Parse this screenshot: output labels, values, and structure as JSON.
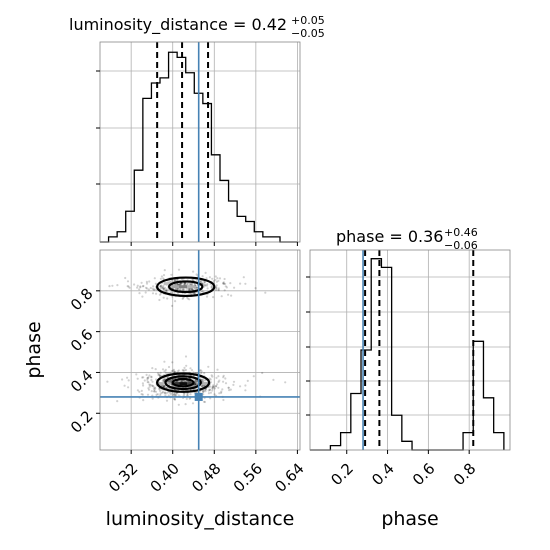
{
  "chart_data": {
    "type": "corner",
    "parameters": [
      "luminosity_distance",
      "phase"
    ],
    "truth": {
      "luminosity_distance": 0.45,
      "phase": 0.28
    },
    "colors": {
      "truth": "#4682b4",
      "hist": "#000000",
      "grid": "#b0b0b0",
      "frame": "#888888"
    },
    "grid": true,
    "luminosity_distance": {
      "title_prefix": "luminosity_distance = ",
      "median_text": "0.42",
      "err_plus_text": "+0.05",
      "err_minus_text": "−0.05",
      "xlabel": "luminosity_distance",
      "range": [
        0.26,
        0.645
      ],
      "ticks": [
        0.32,
        0.4,
        0.48,
        0.56,
        0.64
      ],
      "tick_labels": [
        "0.32",
        "0.40",
        "0.48",
        "0.56",
        "0.64"
      ],
      "quantiles": [
        0.37,
        0.418,
        0.468
      ],
      "hist_edges": [
        0.26,
        0.2765,
        0.293,
        0.3095,
        0.326,
        0.3425,
        0.359,
        0.3755,
        0.392,
        0.4085,
        0.425,
        0.4415,
        0.458,
        0.4745,
        0.491,
        0.5075,
        0.524,
        0.5405,
        0.557,
        0.5735,
        0.59,
        0.6065,
        0.623,
        0.6395
      ],
      "hist_counts": [
        0,
        1,
        2,
        6,
        14,
        28,
        31,
        32,
        37,
        36,
        33,
        29,
        27,
        17,
        12,
        8,
        5,
        4,
        2,
        1,
        1,
        0,
        0
      ],
      "hist_ymax": 39
    },
    "phase": {
      "title_prefix": "phase = ",
      "median_text": "0.36",
      "err_plus_text": "+0.46",
      "err_minus_text": "−0.06",
      "xlabel": "phase",
      "ylabel": "phase",
      "range": [
        0.02,
        1.0
      ],
      "ticks": [
        0.2,
        0.4,
        0.6,
        0.8
      ],
      "tick_labels": [
        "0.2",
        "0.4",
        "0.6",
        "0.8"
      ],
      "quantiles": [
        0.29,
        0.36,
        0.82
      ],
      "hist_edges": [
        0.02,
        0.07,
        0.12,
        0.17,
        0.22,
        0.27,
        0.32,
        0.37,
        0.42,
        0.47,
        0.52,
        0.57,
        0.62,
        0.67,
        0.72,
        0.77,
        0.82,
        0.87,
        0.92,
        0.97
      ],
      "hist_counts": [
        0,
        0,
        1,
        4,
        13,
        23,
        44,
        42,
        8,
        2,
        0,
        0,
        0,
        0,
        0,
        4,
        25,
        12,
        4
      ],
      "hist_ymax": 46
    },
    "scatter_2d": {
      "blobs": [
        {
          "x_mean": 0.415,
          "y_mean": 0.345,
          "x_sd": 0.035,
          "y_sd": 0.035,
          "points": 700
        },
        {
          "x_mean": 0.425,
          "y_mean": 0.82,
          "x_sd": 0.035,
          "y_sd": 0.025,
          "points": 380
        }
      ],
      "density_cells": [
        {
          "x": 0.42,
          "y": 0.345,
          "level": 0.95
        },
        {
          "x": 0.405,
          "y": 0.345,
          "level": 0.8
        },
        {
          "x": 0.435,
          "y": 0.345,
          "level": 0.75
        },
        {
          "x": 0.39,
          "y": 0.36,
          "level": 0.55
        },
        {
          "x": 0.45,
          "y": 0.36,
          "level": 0.5
        },
        {
          "x": 0.42,
          "y": 0.375,
          "level": 0.45
        },
        {
          "x": 0.405,
          "y": 0.33,
          "level": 0.45
        },
        {
          "x": 0.44,
          "y": 0.33,
          "level": 0.4
        },
        {
          "x": 0.375,
          "y": 0.345,
          "level": 0.3
        },
        {
          "x": 0.465,
          "y": 0.345,
          "level": 0.3
        },
        {
          "x": 0.42,
          "y": 0.82,
          "level": 0.5
        },
        {
          "x": 0.405,
          "y": 0.82,
          "level": 0.35
        },
        {
          "x": 0.435,
          "y": 0.82,
          "level": 0.3
        },
        {
          "x": 0.39,
          "y": 0.835,
          "level": 0.25
        },
        {
          "x": 0.45,
          "y": 0.805,
          "level": 0.25
        }
      ],
      "contours": [
        {
          "x": 0.42,
          "y": 0.35,
          "rx": 0.05,
          "ry": 0.045
        },
        {
          "x": 0.42,
          "y": 0.35,
          "rx": 0.034,
          "ry": 0.031
        },
        {
          "x": 0.42,
          "y": 0.35,
          "rx": 0.02,
          "ry": 0.018
        },
        {
          "x": 0.425,
          "y": 0.82,
          "rx": 0.055,
          "ry": 0.045
        },
        {
          "x": 0.425,
          "y": 0.82,
          "rx": 0.032,
          "ry": 0.026
        }
      ],
      "ylim": [
        0.02,
        1.0
      ]
    }
  }
}
